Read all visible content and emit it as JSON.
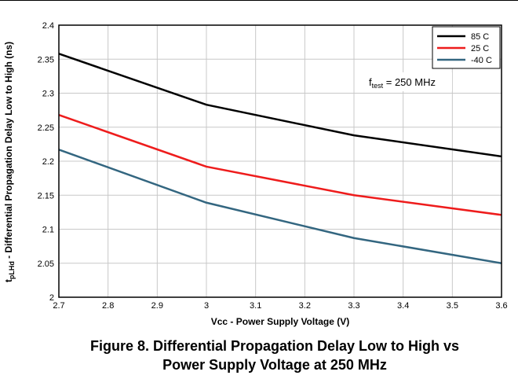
{
  "chart_data": {
    "type": "line",
    "title": "",
    "xlabel": "Vcc - Power Supply Voltage  (V)",
    "ylabel_main": "t",
    "ylabel_sub": "pLHd",
    "ylabel_rest": " - Differential Propagation Delay Low to High (ns)",
    "xlim": [
      2.7,
      3.6
    ],
    "ylim": [
      2.0,
      2.4
    ],
    "x_ticks": [
      "2.7",
      "2.8",
      "2.9",
      "3",
      "3.1",
      "3.2",
      "3.3",
      "3.4",
      "3.5",
      "3.6"
    ],
    "y_ticks": [
      "2",
      "2.05",
      "2.1",
      "2.15",
      "2.2",
      "2.25",
      "2.3",
      "2.35",
      "2.4"
    ],
    "grid": true,
    "legend_position": "top-right",
    "x": [
      2.7,
      3.0,
      3.3,
      3.6
    ],
    "series": [
      {
        "name": "85 C",
        "color": "#000000",
        "values": [
          2.358,
          2.283,
          2.238,
          2.207
        ]
      },
      {
        "name": "25 C",
        "color": "#ee1c1c",
        "values": [
          2.268,
          2.192,
          2.15,
          2.121
        ]
      },
      {
        "name": "-40 C",
        "color": "#336680",
        "values": [
          2.217,
          2.139,
          2.087,
          2.05
        ]
      }
    ],
    "annotation": {
      "main": "f",
      "sub": "test",
      "rest": " = 250 MHz"
    }
  },
  "caption": {
    "line1": "Figure 8. Differential Propagation Delay Low to High vs",
    "line2": "Power Supply Voltage at 250 MHz"
  }
}
